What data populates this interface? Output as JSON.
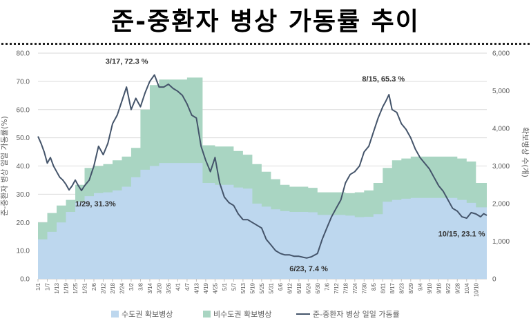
{
  "title": "준-중환자 병상 가동률 추이",
  "chart_data": {
    "type": "area",
    "ylabel": "준-중환자 병상 일일 가동률(%)",
    "y2label": "확보병상 수(개)",
    "ylim": [
      0,
      80
    ],
    "y2lim": [
      0,
      6000
    ],
    "yticks": [
      "0.0",
      "10.0",
      "20.0",
      "30.0",
      "40.0",
      "50.0",
      "60.0",
      "70.0",
      "80.0"
    ],
    "y2ticks": [
      "0",
      "1,000",
      "2,000",
      "3,000",
      "4,000",
      "5,000",
      "6,000"
    ],
    "x_start": "1/1",
    "x_end": "10/17",
    "x_ticks": [
      "1/1",
      "1/7",
      "1/13",
      "1/19",
      "1/25",
      "1/31",
      "2/6",
      "2/12",
      "2/18",
      "2/24",
      "3/2",
      "3/8",
      "3/14",
      "3/20",
      "3/26",
      "4/1",
      "4/7",
      "4/13",
      "4/19",
      "4/25",
      "5/1",
      "5/7",
      "5/13",
      "5/19",
      "5/25",
      "5/31",
      "6/6",
      "6/12",
      "6/18",
      "6/24",
      "6/30",
      "7/6",
      "7/12",
      "7/18",
      "7/24",
      "7/30",
      "8/5",
      "8/11",
      "8/17",
      "8/23",
      "8/29",
      "9/4",
      "9/10",
      "9/16",
      "9/22",
      "9/28",
      "10/4",
      "10/10"
    ],
    "legend_position": "bottom",
    "grid": true,
    "series": [
      {
        "name": "수도권 확보병상",
        "axis": "right",
        "color": "#bdd7ee",
        "points": [
          [
            "1/1",
            1050
          ],
          [
            "1/7",
            1250
          ],
          [
            "1/13",
            1500
          ],
          [
            "1/19",
            1780
          ],
          [
            "1/25",
            2050
          ],
          [
            "1/31",
            2200
          ],
          [
            "2/6",
            2280
          ],
          [
            "2/12",
            2300
          ],
          [
            "2/18",
            2350
          ],
          [
            "2/24",
            2450
          ],
          [
            "3/2",
            2700
          ],
          [
            "3/8",
            2900
          ],
          [
            "3/14",
            3000
          ],
          [
            "3/20",
            3080
          ],
          [
            "4/7",
            3080
          ],
          [
            "4/16",
            3080
          ],
          [
            "4/17",
            2550
          ],
          [
            "4/25",
            2500
          ],
          [
            "5/7",
            2430
          ],
          [
            "5/13",
            2400
          ],
          [
            "5/19",
            2000
          ],
          [
            "5/25",
            1920
          ],
          [
            "5/31",
            1850
          ],
          [
            "6/6",
            1800
          ],
          [
            "6/12",
            1780
          ],
          [
            "6/24",
            1770
          ],
          [
            "6/30",
            1700
          ],
          [
            "7/18",
            1680
          ],
          [
            "7/24",
            1640
          ],
          [
            "7/30",
            1650
          ],
          [
            "8/5",
            1720
          ],
          [
            "8/11",
            2050
          ],
          [
            "8/17",
            2100
          ],
          [
            "8/23",
            2130
          ],
          [
            "8/29",
            2150
          ],
          [
            "9/22",
            2150
          ],
          [
            "9/28",
            2100
          ],
          [
            "10/4",
            2020
          ],
          [
            "10/10",
            1900
          ],
          [
            "10/17",
            1850
          ]
        ]
      },
      {
        "name": "비수도권 확보병상",
        "axis": "right",
        "color": "#a9d5c2",
        "points": [
          [
            "1/1",
            1500
          ],
          [
            "1/7",
            1750
          ],
          [
            "1/13",
            1950
          ],
          [
            "1/19",
            2100
          ],
          [
            "1/25",
            2500
          ],
          [
            "1/31",
            2950
          ],
          [
            "2/6",
            3000
          ],
          [
            "2/12",
            3050
          ],
          [
            "2/18",
            3150
          ],
          [
            "2/24",
            3250
          ],
          [
            "3/2",
            3480
          ],
          [
            "3/8",
            4500
          ],
          [
            "3/14",
            5150
          ],
          [
            "3/20",
            5300
          ],
          [
            "4/7",
            5350
          ],
          [
            "4/16",
            5350
          ],
          [
            "4/17",
            3550
          ],
          [
            "4/25",
            3520
          ],
          [
            "5/7",
            3400
          ],
          [
            "5/13",
            3300
          ],
          [
            "5/19",
            3050
          ],
          [
            "5/25",
            2850
          ],
          [
            "5/31",
            2650
          ],
          [
            "6/6",
            2500
          ],
          [
            "6/12",
            2450
          ],
          [
            "6/24",
            2420
          ],
          [
            "6/30",
            2300
          ],
          [
            "7/18",
            2280
          ],
          [
            "7/24",
            2300
          ],
          [
            "7/30",
            2350
          ],
          [
            "8/5",
            2550
          ],
          [
            "8/11",
            2950
          ],
          [
            "8/17",
            3150
          ],
          [
            "8/23",
            3200
          ],
          [
            "8/29",
            3250
          ],
          [
            "9/22",
            3250
          ],
          [
            "9/28",
            3200
          ],
          [
            "10/4",
            3120
          ],
          [
            "10/10",
            2550
          ],
          [
            "10/17",
            2480
          ]
        ]
      },
      {
        "name": "준-중환자 병상 일일 가동률",
        "axis": "left",
        "color": "#44546a",
        "points": [
          [
            "1/1",
            50.5
          ],
          [
            "1/3",
            48
          ],
          [
            "1/5",
            45
          ],
          [
            "1/7",
            41
          ],
          [
            "1/9",
            43
          ],
          [
            "1/11",
            40
          ],
          [
            "1/13",
            38
          ],
          [
            "1/15",
            36
          ],
          [
            "1/17",
            35
          ],
          [
            "1/19",
            33.5
          ],
          [
            "1/21",
            31.5
          ],
          [
            "1/23",
            33
          ],
          [
            "1/25",
            35
          ],
          [
            "1/27",
            33
          ],
          [
            "1/29",
            31.3
          ],
          [
            "1/31",
            33
          ],
          [
            "2/3",
            35
          ],
          [
            "2/6",
            40
          ],
          [
            "2/9",
            47
          ],
          [
            "2/12",
            44
          ],
          [
            "2/15",
            48
          ],
          [
            "2/18",
            55
          ],
          [
            "2/21",
            58
          ],
          [
            "2/24",
            63
          ],
          [
            "2/27",
            68
          ],
          [
            "3/2",
            60
          ],
          [
            "3/5",
            64
          ],
          [
            "3/8",
            61
          ],
          [
            "3/11",
            66
          ],
          [
            "3/14",
            70
          ],
          [
            "3/17",
            72.3
          ],
          [
            "3/20",
            68
          ],
          [
            "3/23",
            68
          ],
          [
            "3/26",
            69
          ],
          [
            "3/29",
            67.5
          ],
          [
            "4/1",
            66.5
          ],
          [
            "4/4",
            65
          ],
          [
            "4/7",
            62
          ],
          [
            "4/10",
            58
          ],
          [
            "4/13",
            57
          ],
          [
            "4/16",
            47
          ],
          [
            "4/19",
            42
          ],
          [
            "4/22",
            38
          ],
          [
            "4/25",
            43
          ],
          [
            "4/28",
            34
          ],
          [
            "5/1",
            29
          ],
          [
            "5/4",
            27
          ],
          [
            "5/7",
            26
          ],
          [
            "5/10",
            23
          ],
          [
            "5/13",
            21
          ],
          [
            "5/16",
            21
          ],
          [
            "5/19",
            20
          ],
          [
            "5/22",
            19
          ],
          [
            "5/25",
            18
          ],
          [
            "5/28",
            14
          ],
          [
            "5/31",
            12
          ],
          [
            "6/3",
            10
          ],
          [
            "6/6",
            9
          ],
          [
            "6/9",
            8.5
          ],
          [
            "6/12",
            8.5
          ],
          [
            "6/15",
            8
          ],
          [
            "6/18",
            8
          ],
          [
            "6/21",
            7.6
          ],
          [
            "6/23",
            7.4
          ],
          [
            "6/26",
            7.8
          ],
          [
            "6/30",
            9
          ],
          [
            "7/3",
            14
          ],
          [
            "7/6",
            18
          ],
          [
            "7/9",
            22
          ],
          [
            "7/12",
            25
          ],
          [
            "7/15",
            28
          ],
          [
            "7/18",
            34
          ],
          [
            "7/21",
            37
          ],
          [
            "7/24",
            38
          ],
          [
            "7/27",
            40
          ],
          [
            "7/30",
            45
          ],
          [
            "8/2",
            47
          ],
          [
            "8/5",
            52
          ],
          [
            "8/8",
            57
          ],
          [
            "8/11",
            61
          ],
          [
            "8/13",
            63
          ],
          [
            "8/15",
            65.3
          ],
          [
            "8/17",
            60
          ],
          [
            "8/20",
            59
          ],
          [
            "8/23",
            55
          ],
          [
            "8/26",
            53
          ],
          [
            "8/29",
            50
          ],
          [
            "9/1",
            46
          ],
          [
            "9/4",
            43
          ],
          [
            "9/7",
            41
          ],
          [
            "9/10",
            39
          ],
          [
            "9/13",
            36
          ],
          [
            "9/16",
            33
          ],
          [
            "9/19",
            31
          ],
          [
            "9/22",
            28
          ],
          [
            "9/25",
            25
          ],
          [
            "9/28",
            24
          ],
          [
            "10/1",
            22
          ],
          [
            "10/4",
            21.5
          ],
          [
            "10/7",
            23.5
          ],
          [
            "10/10",
            23
          ],
          [
            "10/13",
            22
          ],
          [
            "10/15",
            23.1
          ],
          [
            "10/17",
            22.5
          ]
        ]
      }
    ],
    "annotations": [
      {
        "date": "3/17",
        "text": "3/17, 72.3 %"
      },
      {
        "date": "1/29",
        "text": "1/29, 31.3%"
      },
      {
        "date": "6/23",
        "text": "6/23, 7.4 %"
      },
      {
        "date": "8/15",
        "text": "8/15, 65.3 %"
      },
      {
        "date": "10/15",
        "text": "10/15, 23.1 %"
      }
    ]
  }
}
